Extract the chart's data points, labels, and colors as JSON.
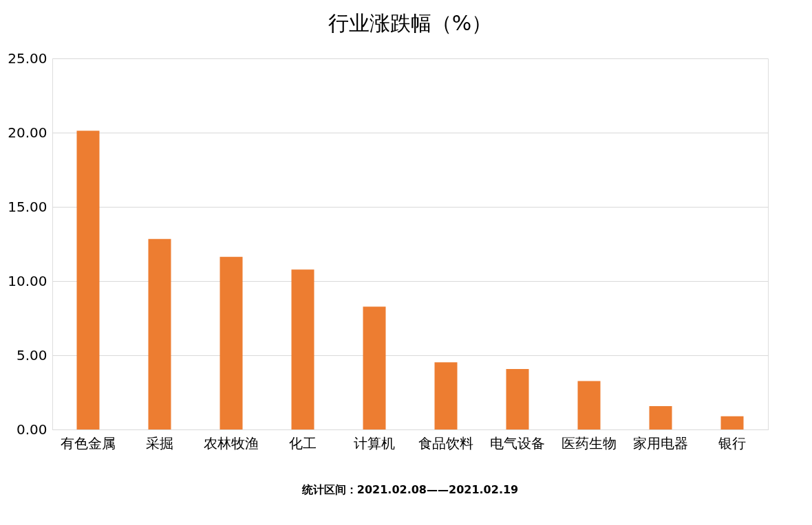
{
  "chart_data": {
    "type": "bar",
    "title": "行业涨跌幅（%）",
    "categories": [
      "有色金属",
      "采掘",
      "农林牧渔",
      "化工",
      "计算机",
      "食品饮料",
      "电气设备",
      "医药生物",
      "家用电器",
      "银行"
    ],
    "values": [
      20.13,
      12.84,
      11.63,
      10.78,
      8.27,
      4.52,
      4.07,
      3.26,
      1.57,
      0.89
    ],
    "color": "#ed7d31",
    "ylim": [
      0,
      25
    ],
    "yticks": [
      {
        "value": 0,
        "label": "0.00"
      },
      {
        "value": 5,
        "label": "5.00"
      },
      {
        "value": 10,
        "label": "10.00"
      },
      {
        "value": 15,
        "label": "15.00"
      },
      {
        "value": 20,
        "label": "20.00"
      },
      {
        "value": 25,
        "label": "25.00"
      }
    ],
    "grid": "y",
    "annotations": [
      "统计区间：2021.02.08——2021.02.19"
    ]
  }
}
